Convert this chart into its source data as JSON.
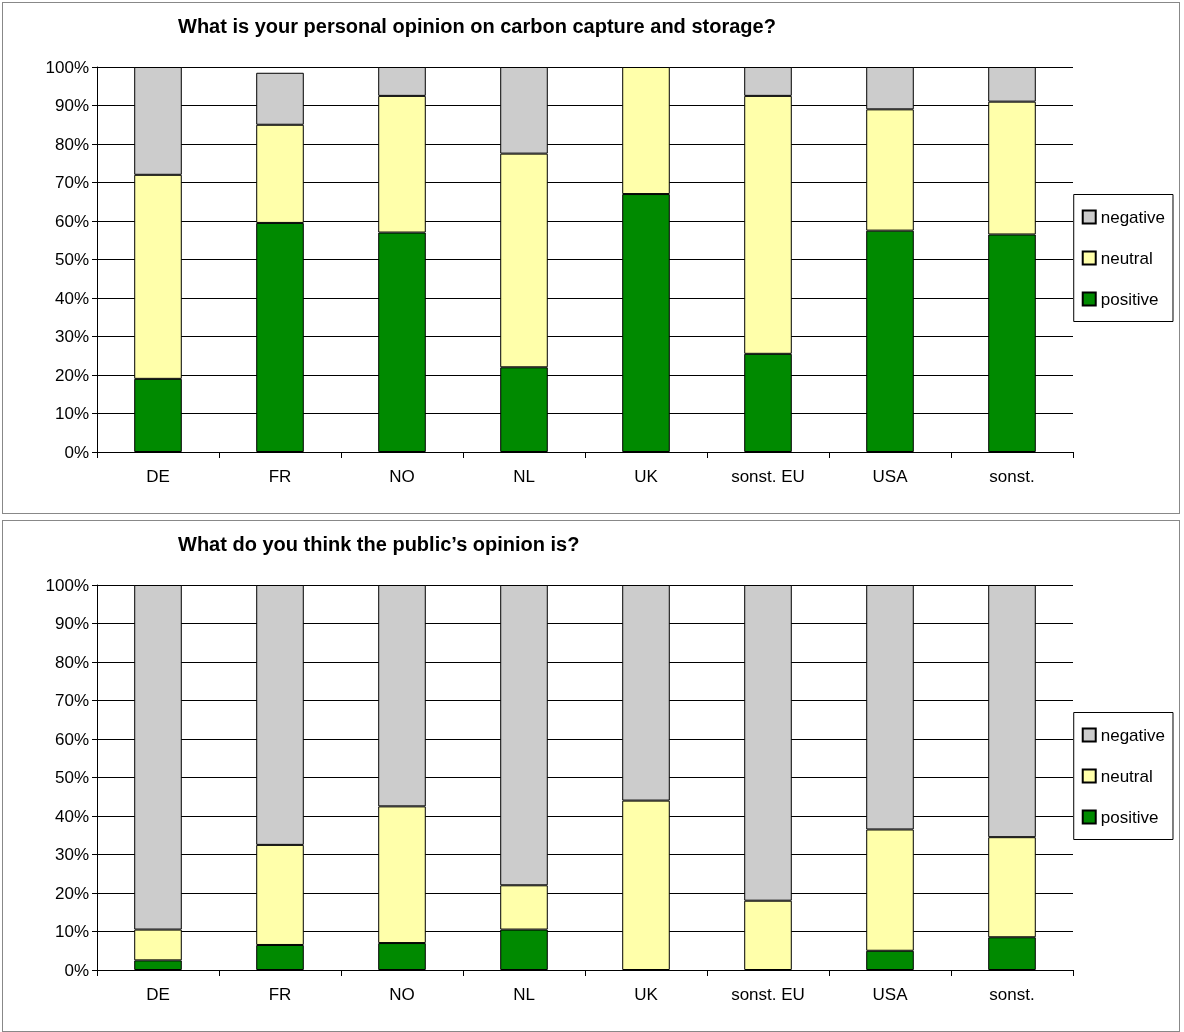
{
  "chart_data": [
    {
      "type": "bar",
      "title": "What is your personal opinion on carbon capture and storage?",
      "categories": [
        "DE",
        "FR",
        "NO",
        "NL",
        "UK",
        "sonst. EU",
        "USA",
        "sonst."
      ],
      "stacked": true,
      "series": [
        {
          "name": "positive",
          "color": "#008a00",
          "values": [
            19,
            59.5,
            57,
            22,
            67,
            25.5,
            57.5,
            56.5
          ]
        },
        {
          "name": "neutral",
          "color": "#ffffaa",
          "values": [
            53,
            25.5,
            35.5,
            55.5,
            33,
            67,
            31.5,
            34.5
          ]
        },
        {
          "name": "negative",
          "color": "#cccccc",
          "values": [
            28,
            13.5,
            7.5,
            22.5,
            0,
            7.5,
            11,
            9
          ]
        }
      ],
      "ylim": [
        0,
        100
      ],
      "yticks": [
        {
          "value": 0,
          "label": "0%"
        },
        {
          "value": 10,
          "label": "10%"
        },
        {
          "value": 20,
          "label": "20%"
        },
        {
          "value": 30,
          "label": "30%"
        },
        {
          "value": 40,
          "label": "40%"
        },
        {
          "value": 50,
          "label": "50%"
        },
        {
          "value": 60,
          "label": "60%"
        },
        {
          "value": 70,
          "label": "70%"
        },
        {
          "value": 80,
          "label": "80%"
        },
        {
          "value": 90,
          "label": "90%"
        },
        {
          "value": 100,
          "label": "100%"
        }
      ],
      "grid": "y",
      "legend": "right"
    },
    {
      "type": "bar",
      "title": "What do you think the public’s opinion is?",
      "categories": [
        "DE",
        "FR",
        "NO",
        "NL",
        "UK",
        "sonst. EU",
        "USA",
        "sonst."
      ],
      "stacked": true,
      "series": [
        {
          "name": "positive",
          "color": "#008a00",
          "values": [
            2.5,
            6.5,
            7,
            10.5,
            0,
            0,
            5,
            8.5
          ]
        },
        {
          "name": "neutral",
          "color": "#ffffaa",
          "values": [
            8,
            26,
            35.5,
            11.5,
            44,
            18,
            31.5,
            26
          ]
        },
        {
          "name": "negative",
          "color": "#cccccc",
          "values": [
            89.5,
            67.5,
            57.5,
            78,
            56,
            82,
            63.5,
            65.5
          ]
        }
      ],
      "ylim": [
        0,
        100
      ],
      "yticks": [
        {
          "value": 0,
          "label": "0%"
        },
        {
          "value": 10,
          "label": "10%"
        },
        {
          "value": 20,
          "label": "20%"
        },
        {
          "value": 30,
          "label": "30%"
        },
        {
          "value": 40,
          "label": "40%"
        },
        {
          "value": 50,
          "label": "50%"
        },
        {
          "value": 60,
          "label": "60%"
        },
        {
          "value": 70,
          "label": "70%"
        },
        {
          "value": 80,
          "label": "80%"
        },
        {
          "value": 90,
          "label": "90%"
        },
        {
          "value": 100,
          "label": "100%"
        }
      ],
      "grid": "y",
      "legend": "right"
    }
  ]
}
